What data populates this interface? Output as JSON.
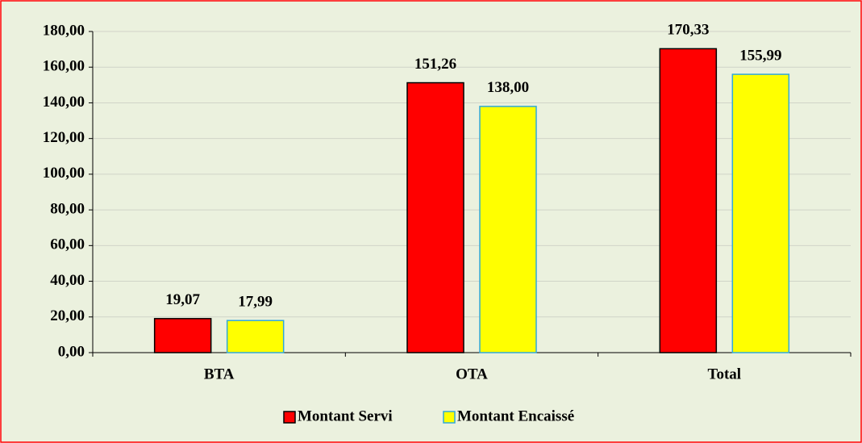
{
  "chart_data": {
    "type": "bar",
    "categories": [
      "BTA",
      "OTA",
      "Total"
    ],
    "series": [
      {
        "name": "Montant Servi",
        "color": "#ff0000",
        "edgecolor": "#000000",
        "values": [
          19.07,
          151.26,
          170.33
        ],
        "value_labels": [
          "19,07",
          "151,26",
          "170,33"
        ]
      },
      {
        "name": "Montant Encaissé",
        "color": "#ffff00",
        "edgecolor": "#31a9d8",
        "values": [
          17.99,
          138.0,
          155.99
        ],
        "value_labels": [
          "17,99",
          "138,00",
          "155,99"
        ]
      }
    ],
    "ylim": [
      0,
      180
    ],
    "yticks": [
      {
        "value": 0,
        "label": "0,00"
      },
      {
        "value": 20,
        "label": "20,00"
      },
      {
        "value": 40,
        "label": "40,00"
      },
      {
        "value": 60,
        "label": "60,00"
      },
      {
        "value": 80,
        "label": "80,00"
      },
      {
        "value": 100,
        "label": "100,00"
      },
      {
        "value": 120,
        "label": "120,00"
      },
      {
        "value": 140,
        "label": "140,00"
      },
      {
        "value": 160,
        "label": "160,00"
      },
      {
        "value": 180,
        "label": "180,00"
      }
    ],
    "grid": true,
    "legend": "bottom"
  }
}
